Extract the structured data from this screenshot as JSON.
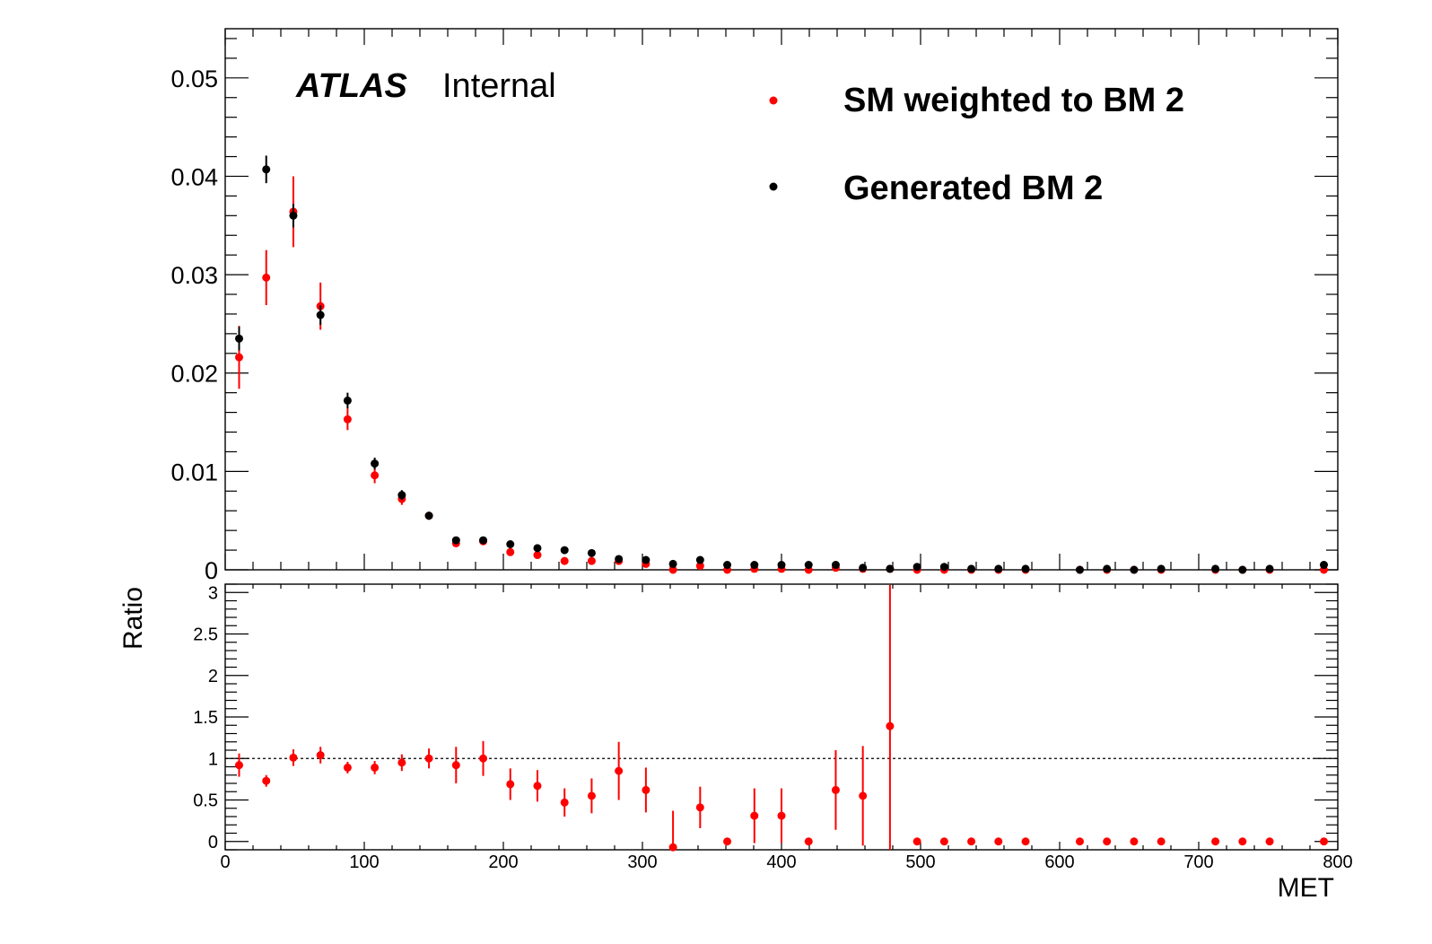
{
  "chart_data": [
    {
      "type": "scatter",
      "panel": "main",
      "xlabel": "",
      "ylabel": "",
      "xlim": [
        0,
        800
      ],
      "ylim": [
        0,
        0.055
      ],
      "yticks": [
        "0",
        "0.01",
        "0.02",
        "0.03",
        "0.04",
        "0.05"
      ],
      "atlas_label": "ATLAS",
      "atlas_sub": "Internal",
      "legend": [
        "SM weighted to BM 2",
        "Generated BM 2"
      ],
      "legend_position": "top-right",
      "series": [
        {
          "name": "SM weighted to BM 2",
          "color": "#ff0000",
          "points": [
            {
              "x": 10,
              "y": 0.0216,
              "e": 0.0032
            },
            {
              "x": 29.5,
              "y": 0.0297,
              "e": 0.0028
            },
            {
              "x": 49,
              "y": 0.0364,
              "e": 0.0036
            },
            {
              "x": 68.5,
              "y": 0.0268,
              "e": 0.0024
            },
            {
              "x": 88,
              "y": 0.0153,
              "e": 0.0011
            },
            {
              "x": 107.5,
              "y": 0.0096,
              "e": 0.0008
            },
            {
              "x": 127,
              "y": 0.0072,
              "e": 0.0006
            },
            {
              "x": 146.5,
              "y": 0.0055,
              "e": 0.0004
            },
            {
              "x": 166,
              "y": 0.0027,
              "e": 0.0003
            },
            {
              "x": 185.5,
              "y": 0.0029,
              "e": 0.0003
            },
            {
              "x": 205,
              "y": 0.0018,
              "e": 0.0003
            },
            {
              "x": 224.5,
              "y": 0.0015,
              "e": 0.0002
            },
            {
              "x": 244,
              "y": 0.0009,
              "e": 0.0002
            },
            {
              "x": 263.5,
              "y": 0.0009,
              "e": 0.0002
            },
            {
              "x": 283,
              "y": 0.0009,
              "e": 0.0002
            },
            {
              "x": 302.5,
              "y": 0.0006,
              "e": 0.0002
            },
            {
              "x": 322,
              "y": 0.0,
              "e": 0.0
            },
            {
              "x": 341.5,
              "y": 0.0004,
              "e": 0.0001
            },
            {
              "x": 361,
              "y": 0.0,
              "e": 0.0
            },
            {
              "x": 380.5,
              "y": 0.0001,
              "e": 0.0001
            },
            {
              "x": 400,
              "y": 0.0001,
              "e": 0.0001
            },
            {
              "x": 419.5,
              "y": 0.0,
              "e": 0.0
            },
            {
              "x": 439,
              "y": 0.0002,
              "e": 0.0001
            },
            {
              "x": 458.5,
              "y": 0.0001,
              "e": 0.0001
            },
            {
              "x": 478,
              "y": 0.0001,
              "e": 0.0001
            },
            {
              "x": 497.5,
              "y": 0.0,
              "e": 0.0
            },
            {
              "x": 517,
              "y": 0.0,
              "e": 0.0
            },
            {
              "x": 536.5,
              "y": 0.0,
              "e": 0.0
            },
            {
              "x": 556,
              "y": 0.0,
              "e": 0.0
            },
            {
              "x": 575.5,
              "y": 0.0,
              "e": 0.0
            },
            {
              "x": 614.5,
              "y": 0.0,
              "e": 0.0
            },
            {
              "x": 634,
              "y": 0.0,
              "e": 0.0
            },
            {
              "x": 653.5,
              "y": 0.0,
              "e": 0.0
            },
            {
              "x": 673,
              "y": 0.0,
              "e": 0.0
            },
            {
              "x": 712,
              "y": 0.0,
              "e": 0.0
            },
            {
              "x": 731.5,
              "y": 0.0,
              "e": 0.0
            },
            {
              "x": 751,
              "y": 0.0,
              "e": 0.0
            },
            {
              "x": 790,
              "y": 0.0,
              "e": 0.0
            }
          ]
        },
        {
          "name": "Generated BM 2",
          "color": "#000000",
          "points": [
            {
              "x": 10,
              "y": 0.0235,
              "e": 0.0012
            },
            {
              "x": 29.5,
              "y": 0.0407,
              "e": 0.0014
            },
            {
              "x": 49,
              "y": 0.036,
              "e": 0.0012
            },
            {
              "x": 68.5,
              "y": 0.0259,
              "e": 0.001
            },
            {
              "x": 88,
              "y": 0.0172,
              "e": 0.0008
            },
            {
              "x": 107.5,
              "y": 0.0108,
              "e": 0.0006
            },
            {
              "x": 127,
              "y": 0.0076,
              "e": 0.0005
            },
            {
              "x": 146.5,
              "y": 0.0055,
              "e": 0.0004
            },
            {
              "x": 166,
              "y": 0.003,
              "e": 0.0003
            },
            {
              "x": 185.5,
              "y": 0.003,
              "e": 0.0003
            },
            {
              "x": 205,
              "y": 0.0026,
              "e": 0.0002
            },
            {
              "x": 224.5,
              "y": 0.0022,
              "e": 0.0002
            },
            {
              "x": 244,
              "y": 0.002,
              "e": 0.0002
            },
            {
              "x": 263.5,
              "y": 0.0017,
              "e": 0.0002
            },
            {
              "x": 283,
              "y": 0.0011,
              "e": 0.0002
            },
            {
              "x": 302.5,
              "y": 0.001,
              "e": 0.0002
            },
            {
              "x": 322,
              "y": 0.0006,
              "e": 0.0001
            },
            {
              "x": 341.5,
              "y": 0.001,
              "e": 0.0001
            },
            {
              "x": 361,
              "y": 0.0005,
              "e": 0.0001
            },
            {
              "x": 380.5,
              "y": 0.0005,
              "e": 0.0001
            },
            {
              "x": 400,
              "y": 0.0005,
              "e": 0.0001
            },
            {
              "x": 419.5,
              "y": 0.0005,
              "e": 0.0001
            },
            {
              "x": 439,
              "y": 0.0005,
              "e": 0.0001
            },
            {
              "x": 458.5,
              "y": 0.0002,
              "e": 0.0001
            },
            {
              "x": 478,
              "y": 0.0001,
              "e": 0.0001
            },
            {
              "x": 497.5,
              "y": 0.0003,
              "e": 0.0001
            },
            {
              "x": 517,
              "y": 0.0003,
              "e": 0.0001
            },
            {
              "x": 536.5,
              "y": 0.0001,
              "e": 0.0001
            },
            {
              "x": 556,
              "y": 0.0001,
              "e": 0.0001
            },
            {
              "x": 575.5,
              "y": 0.0001,
              "e": 0.0001
            },
            {
              "x": 614.5,
              "y": 0.0,
              "e": 0.0
            },
            {
              "x": 634,
              "y": 0.0001,
              "e": 0.0
            },
            {
              "x": 653.5,
              "y": 0.0,
              "e": 0.0
            },
            {
              "x": 673,
              "y": 0.0001,
              "e": 0.0
            },
            {
              "x": 712,
              "y": 0.0001,
              "e": 0.0
            },
            {
              "x": 731.5,
              "y": 0.0,
              "e": 0.0
            },
            {
              "x": 751,
              "y": 0.0001,
              "e": 0.0
            },
            {
              "x": 790,
              "y": 0.0005,
              "e": 0.0001
            }
          ]
        }
      ]
    },
    {
      "type": "scatter",
      "panel": "ratio",
      "xlabel": "MET",
      "ylabel": "Ratio",
      "xlim": [
        0,
        800
      ],
      "ylim": [
        -0.1,
        3.1
      ],
      "xticks": [
        "0",
        "100",
        "200",
        "300",
        "400",
        "500",
        "600",
        "700",
        "800"
      ],
      "yticks": [
        "0",
        "0.5",
        "1",
        "1.5",
        "2",
        "2.5",
        "3"
      ],
      "reference_line": 1,
      "series": [
        {
          "name": "Ratio",
          "color": "#ff0000",
          "points": [
            {
              "x": 10,
              "y": 0.92,
              "e": 0.14
            },
            {
              "x": 29.5,
              "y": 0.73,
              "e": 0.07
            },
            {
              "x": 49,
              "y": 1.01,
              "e": 0.1
            },
            {
              "x": 68.5,
              "y": 1.04,
              "e": 0.1
            },
            {
              "x": 88,
              "y": 0.89,
              "e": 0.07
            },
            {
              "x": 107.5,
              "y": 0.89,
              "e": 0.08
            },
            {
              "x": 127,
              "y": 0.95,
              "e": 0.1
            },
            {
              "x": 146.5,
              "y": 1.0,
              "e": 0.12
            },
            {
              "x": 166,
              "y": 0.92,
              "e": 0.22
            },
            {
              "x": 185.5,
              "y": 1.0,
              "e": 0.21
            },
            {
              "x": 205,
              "y": 0.69,
              "e": 0.19
            },
            {
              "x": 224.5,
              "y": 0.67,
              "e": 0.19
            },
            {
              "x": 244,
              "y": 0.47,
              "e": 0.17
            },
            {
              "x": 263.5,
              "y": 0.55,
              "e": 0.21
            },
            {
              "x": 283,
              "y": 0.85,
              "e": 0.35
            },
            {
              "x": 302.5,
              "y": 0.62,
              "e": 0.27
            },
            {
              "x": 322,
              "y": -0.07,
              "e": 0.44
            },
            {
              "x": 341.5,
              "y": 0.41,
              "e": 0.25
            },
            {
              "x": 361,
              "y": 0.0,
              "e": 0.0
            },
            {
              "x": 380.5,
              "y": 0.31,
              "e": 0.33
            },
            {
              "x": 400,
              "y": 0.31,
              "e": 0.33
            },
            {
              "x": 419.5,
              "y": 0.0,
              "e": 0.0
            },
            {
              "x": 439,
              "y": 0.62,
              "e": 0.48
            },
            {
              "x": 458.5,
              "y": 0.55,
              "e": 0.6
            },
            {
              "x": 478,
              "y": 1.39,
              "e": 1.7
            },
            {
              "x": 497.5,
              "y": 0.0,
              "e": 0.0
            },
            {
              "x": 517,
              "y": 0.0,
              "e": 0.0
            },
            {
              "x": 536.5,
              "y": 0.0,
              "e": 0.0
            },
            {
              "x": 556,
              "y": 0.0,
              "e": 0.0
            },
            {
              "x": 575.5,
              "y": 0.0,
              "e": 0.0
            },
            {
              "x": 614.5,
              "y": 0.0,
              "e": 0.0
            },
            {
              "x": 634,
              "y": 0.0,
              "e": 0.0
            },
            {
              "x": 653.5,
              "y": 0.0,
              "e": 0.0
            },
            {
              "x": 673,
              "y": 0.0,
              "e": 0.0
            },
            {
              "x": 712,
              "y": 0.0,
              "e": 0.0
            },
            {
              "x": 731.5,
              "y": 0.0,
              "e": 0.0
            },
            {
              "x": 751,
              "y": 0.0,
              "e": 0.0
            },
            {
              "x": 790,
              "y": 0.0,
              "e": 0.0
            }
          ]
        }
      ]
    }
  ]
}
